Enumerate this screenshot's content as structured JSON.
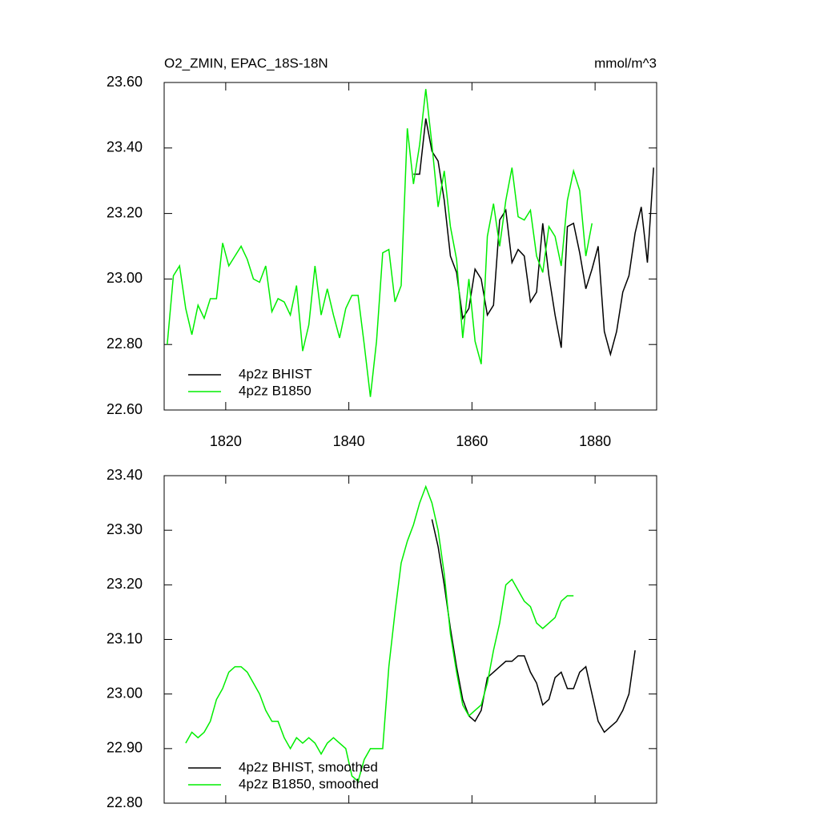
{
  "chart_data": [
    {
      "type": "line",
      "title": "O2_ZMIN, EPAC_18S-18N",
      "units": "mmol/m^3",
      "xlim": [
        1810,
        1890
      ],
      "xticks": [
        1820,
        1840,
        1860,
        1880
      ],
      "ylim": [
        22.6,
        23.6
      ],
      "yticks": [
        {
          "value": 22.6,
          "label": "22.60"
        },
        {
          "value": 22.8,
          "label": "22.80"
        },
        {
          "value": 23.0,
          "label": "23.00"
        },
        {
          "value": 23.2,
          "label": "23.20"
        },
        {
          "value": 23.4,
          "label": "23.40"
        },
        {
          "value": 23.6,
          "label": "23.60"
        }
      ],
      "legend": "lower-left",
      "series": [
        {
          "name": "4p2z BHIST",
          "color": "#000000",
          "x": [
            1850.5,
            1851.5,
            1852.5,
            1853.5,
            1854.5,
            1855.5,
            1856.5,
            1857.5,
            1858.5,
            1859.5,
            1860.5,
            1861.5,
            1862.5,
            1863.5,
            1864.5,
            1865.5,
            1866.5,
            1867.5,
            1868.5,
            1869.5,
            1870.5,
            1871.5,
            1872.5,
            1873.5,
            1874.5,
            1875.5,
            1876.5,
            1877.5,
            1878.5,
            1879.5,
            1880.5,
            1881.5,
            1882.5,
            1883.5,
            1884.5,
            1885.5,
            1886.5,
            1887.5,
            1888.5,
            1889.5
          ],
          "values": [
            23.32,
            23.32,
            23.49,
            23.39,
            23.36,
            23.24,
            23.07,
            23.02,
            22.88,
            22.91,
            23.03,
            23.0,
            22.89,
            22.92,
            23.18,
            23.21,
            23.05,
            23.09,
            23.07,
            22.93,
            22.96,
            23.17,
            23.01,
            22.89,
            22.79,
            23.16,
            23.17,
            23.08,
            22.97,
            23.03,
            23.1,
            22.84,
            22.77,
            22.84,
            22.96,
            23.01,
            23.14,
            23.22,
            23.05,
            23.34
          ]
        },
        {
          "name": "4p2z B1850",
          "color": "#00ee00",
          "x": [
            1810.5,
            1811.5,
            1812.5,
            1813.5,
            1814.5,
            1815.5,
            1816.5,
            1817.5,
            1818.5,
            1819.5,
            1820.5,
            1821.5,
            1822.5,
            1823.5,
            1824.5,
            1825.5,
            1826.5,
            1827.5,
            1828.5,
            1829.5,
            1830.5,
            1831.5,
            1832.5,
            1833.5,
            1834.5,
            1835.5,
            1836.5,
            1837.5,
            1838.5,
            1839.5,
            1840.5,
            1841.5,
            1842.5,
            1843.5,
            1844.5,
            1845.5,
            1846.5,
            1847.5,
            1848.5,
            1849.5,
            1850.5,
            1851.5,
            1852.5,
            1853.5,
            1854.5,
            1855.5,
            1856.5,
            1857.5,
            1858.5,
            1859.5,
            1860.5,
            1861.5,
            1862.5,
            1863.5,
            1864.5,
            1865.5,
            1866.5,
            1867.5,
            1868.5,
            1869.5,
            1870.5,
            1871.5,
            1872.5,
            1873.5,
            1874.5,
            1875.5,
            1876.5,
            1877.5,
            1878.5,
            1879.5
          ],
          "values": [
            22.8,
            23.01,
            23.04,
            22.91,
            22.83,
            22.92,
            22.88,
            22.94,
            22.94,
            23.11,
            23.04,
            23.07,
            23.1,
            23.06,
            23.0,
            22.99,
            23.04,
            22.9,
            22.94,
            22.93,
            22.89,
            22.98,
            22.78,
            22.86,
            23.04,
            22.89,
            22.97,
            22.89,
            22.82,
            22.91,
            22.95,
            22.95,
            22.8,
            22.64,
            22.81,
            23.08,
            23.09,
            22.93,
            22.98,
            23.46,
            23.29,
            23.41,
            23.58,
            23.41,
            23.22,
            23.33,
            23.16,
            23.06,
            22.82,
            23.0,
            22.81,
            22.74,
            23.13,
            23.23,
            23.1,
            23.24,
            23.34,
            23.19,
            23.18,
            23.21,
            23.07,
            23.02,
            23.16,
            23.13,
            23.04,
            23.24,
            23.33,
            23.27,
            23.07,
            23.17
          ]
        }
      ]
    },
    {
      "type": "line",
      "xlim": [
        1810,
        1890
      ],
      "ylim": [
        22.8,
        23.4
      ],
      "yticks": [
        {
          "value": 22.8,
          "label": "22.80"
        },
        {
          "value": 22.9,
          "label": "22.90"
        },
        {
          "value": 23.0,
          "label": "23.00"
        },
        {
          "value": 23.1,
          "label": "23.10"
        },
        {
          "value": 23.2,
          "label": "23.20"
        },
        {
          "value": 23.3,
          "label": "23.30"
        },
        {
          "value": 23.4,
          "label": "23.40"
        }
      ],
      "legend": "lower-left",
      "series": [
        {
          "name": "4p2z BHIST, smoothed",
          "color": "#000000",
          "x": [
            1853.5,
            1854.5,
            1855.5,
            1856.5,
            1857.5,
            1858.5,
            1859.5,
            1860.5,
            1861.5,
            1862.5,
            1863.5,
            1864.5,
            1865.5,
            1866.5,
            1867.5,
            1868.5,
            1869.5,
            1870.5,
            1871.5,
            1872.5,
            1873.5,
            1874.5,
            1875.5,
            1876.5,
            1877.5,
            1878.5,
            1879.5,
            1880.5,
            1881.5,
            1882.5,
            1883.5,
            1884.5,
            1885.5,
            1886.5
          ],
          "values": [
            23.32,
            23.27,
            23.2,
            23.12,
            23.05,
            22.99,
            22.96,
            22.95,
            22.97,
            23.03,
            23.04,
            23.05,
            23.06,
            23.06,
            23.07,
            23.07,
            23.04,
            23.02,
            22.98,
            22.99,
            23.03,
            23.04,
            23.01,
            23.01,
            23.04,
            23.05,
            23.0,
            22.95,
            22.93,
            22.94,
            22.95,
            22.97,
            23.0,
            23.08
          ]
        },
        {
          "name": "4p2z B1850, smoothed",
          "color": "#00ee00",
          "x": [
            1813.5,
            1814.5,
            1815.5,
            1816.5,
            1817.5,
            1818.5,
            1819.5,
            1820.5,
            1821.5,
            1822.5,
            1823.5,
            1824.5,
            1825.5,
            1826.5,
            1827.5,
            1828.5,
            1829.5,
            1830.5,
            1831.5,
            1832.5,
            1833.5,
            1834.5,
            1835.5,
            1836.5,
            1837.5,
            1838.5,
            1839.5,
            1840.5,
            1841.5,
            1842.5,
            1843.5,
            1844.5,
            1845.5,
            1846.5,
            1847.5,
            1848.5,
            1849.5,
            1850.5,
            1851.5,
            1852.5,
            1853.5,
            1854.5,
            1855.5,
            1856.5,
            1857.5,
            1858.5,
            1859.5,
            1860.5,
            1861.5,
            1862.5,
            1863.5,
            1864.5,
            1865.5,
            1866.5,
            1867.5,
            1868.5,
            1869.5,
            1870.5,
            1871.5,
            1872.5,
            1873.5,
            1874.5,
            1875.5,
            1876.5
          ],
          "values": [
            22.91,
            22.93,
            22.92,
            22.93,
            22.95,
            22.99,
            23.01,
            23.04,
            23.05,
            23.05,
            23.04,
            23.02,
            23.0,
            22.97,
            22.95,
            22.95,
            22.92,
            22.9,
            22.92,
            22.91,
            22.92,
            22.91,
            22.89,
            22.91,
            22.92,
            22.91,
            22.9,
            22.85,
            22.84,
            22.88,
            22.9,
            22.9,
            22.9,
            23.05,
            23.15,
            23.24,
            23.28,
            23.31,
            23.35,
            23.38,
            23.35,
            23.3,
            23.22,
            23.11,
            23.04,
            22.98,
            22.96,
            22.97,
            22.98,
            23.02,
            23.08,
            23.13,
            23.2,
            23.21,
            23.19,
            23.17,
            23.16,
            23.13,
            23.12,
            23.13,
            23.14,
            23.17,
            23.18,
            23.18
          ]
        }
      ]
    }
  ]
}
